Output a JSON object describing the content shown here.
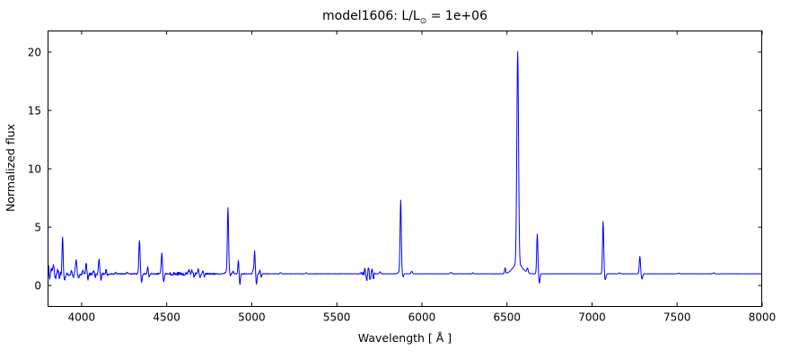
{
  "title": {
    "prefix": "model1606: L/L",
    "solar_symbol": "⊙",
    "suffix": " = 1e+06"
  },
  "chart_data": {
    "type": "line",
    "title": "model1606: L/L⊙ = 1e+06",
    "xlabel": "Wavelength [ Å ]",
    "ylabel": "Normalized flux",
    "xlim": [
      3800,
      8000
    ],
    "ylim": [
      -1.8,
      21.85
    ],
    "xticks": [
      4000,
      4500,
      5000,
      5500,
      6000,
      6500,
      7000,
      7500,
      8000
    ],
    "yticks": [
      0,
      5,
      10,
      15,
      20
    ],
    "grid": false,
    "legend": null,
    "line_color": "#0000ff",
    "background_color": "#ffffff",
    "axis_color": "#000000",
    "continuum_level": 1.0,
    "sample_step_angstrom": 1.8,
    "emission_lines": [
      {
        "wavelength": 3806,
        "amp": 0.6,
        "sigma": 2.5
      },
      {
        "wavelength": 3813,
        "amp": -0.45,
        "sigma": 2.5
      },
      {
        "wavelength": 3822,
        "amp": 0.45,
        "sigma": 3
      },
      {
        "wavelength": 3835,
        "amp": 0.85,
        "sigma": 3
      },
      {
        "wavelength": 3846,
        "amp": -0.5,
        "sigma": 3
      },
      {
        "wavelength": 3860,
        "amp": 0.4,
        "sigma": 3
      },
      {
        "wavelength": 3871,
        "amp": -0.35,
        "sigma": 2.5
      },
      {
        "wavelength": 3889,
        "amp": 3.2,
        "sigma": 3
      },
      {
        "wavelength": 3900,
        "amp": -0.5,
        "sigma": 3.5
      },
      {
        "wavelength": 3926,
        "amp": -0.2,
        "sigma": 3
      },
      {
        "wavelength": 3940,
        "amp": 0.25,
        "sigma": 3
      },
      {
        "wavelength": 3952,
        "amp": -0.3,
        "sigma": 2.5
      },
      {
        "wavelength": 3964,
        "amp": 0.5,
        "sigma": 2.5
      },
      {
        "wavelength": 3970,
        "amp": 1.1,
        "sigma": 3
      },
      {
        "wavelength": 3982,
        "amp": -0.45,
        "sigma": 3
      },
      {
        "wavelength": 4009,
        "amp": 0.3,
        "sigma": 3
      },
      {
        "wavelength": 4026,
        "amp": 0.95,
        "sigma": 3
      },
      {
        "wavelength": 4037,
        "amp": -0.45,
        "sigma": 3
      },
      {
        "wavelength": 4070,
        "amp": 0.3,
        "sigma": 3
      },
      {
        "wavelength": 4081,
        "amp": -0.25,
        "sigma": 2.5
      },
      {
        "wavelength": 4102,
        "amp": 1.3,
        "sigma": 3.5
      },
      {
        "wavelength": 4114,
        "amp": -0.5,
        "sigma": 3.5
      },
      {
        "wavelength": 4144,
        "amp": 0.35,
        "sigma": 3
      },
      {
        "wavelength": 4154,
        "amp": -0.2,
        "sigma": 3
      },
      {
        "wavelength": 4200,
        "amp": 0.12,
        "sigma": 3
      },
      {
        "wavelength": 4267,
        "amp": 0.15,
        "sigma": 3
      },
      {
        "wavelength": 4340,
        "amp": 2.9,
        "sigma": 3.5
      },
      {
        "wavelength": 4352,
        "amp": -0.7,
        "sigma": 3.5
      },
      {
        "wavelength": 4388,
        "amp": 0.6,
        "sigma": 3
      },
      {
        "wavelength": 4398,
        "amp": -0.3,
        "sigma": 3
      },
      {
        "wavelength": 4471,
        "amp": 1.75,
        "sigma": 3.5
      },
      {
        "wavelength": 4482,
        "amp": -0.65,
        "sigma": 3.5
      },
      {
        "wavelength": 4630,
        "amp": 0.3,
        "sigma": 4
      },
      {
        "wavelength": 4650,
        "amp": 0.3,
        "sigma": 3
      },
      {
        "wavelength": 4662,
        "amp": -0.25,
        "sigma": 3
      },
      {
        "wavelength": 4686,
        "amp": 0.45,
        "sigma": 3
      },
      {
        "wavelength": 4696,
        "amp": -0.3,
        "sigma": 3
      },
      {
        "wavelength": 4713,
        "amp": 0.3,
        "sigma": 2.5
      },
      {
        "wavelength": 4722,
        "amp": -0.25,
        "sigma": 2.5
      },
      {
        "wavelength": 4861,
        "amp": 5.4,
        "sigma": 3.5
      },
      {
        "wavelength": 4861,
        "amp": 0.25,
        "sigma": 12
      },
      {
        "wavelength": 4875,
        "amp": -0.3,
        "sigma": 3
      },
      {
        "wavelength": 4890,
        "amp": 0.2,
        "sigma": 3
      },
      {
        "wavelength": 4922,
        "amp": 1.15,
        "sigma": 3
      },
      {
        "wavelength": 4931,
        "amp": -0.95,
        "sigma": 3
      },
      {
        "wavelength": 5007,
        "amp": 0.35,
        "sigma": 3
      },
      {
        "wavelength": 5016,
        "amp": 1.95,
        "sigma": 3
      },
      {
        "wavelength": 5027,
        "amp": -0.9,
        "sigma": 3
      },
      {
        "wavelength": 5048,
        "amp": 0.3,
        "sigma": 2.5
      },
      {
        "wavelength": 5056,
        "amp": -0.3,
        "sigma": 2.5
      },
      {
        "wavelength": 5170,
        "amp": 0.1,
        "sigma": 4
      },
      {
        "wavelength": 5320,
        "amp": 0.08,
        "sigma": 4
      },
      {
        "wavelength": 5665,
        "amp": 0.45,
        "sigma": 3
      },
      {
        "wavelength": 5675,
        "amp": -0.6,
        "sigma": 3
      },
      {
        "wavelength": 5686,
        "amp": 0.5,
        "sigma": 3
      },
      {
        "wavelength": 5696,
        "amp": -0.5,
        "sigma": 3
      },
      {
        "wavelength": 5706,
        "amp": 0.35,
        "sigma": 3
      },
      {
        "wavelength": 5715,
        "amp": -0.35,
        "sigma": 3
      },
      {
        "wavelength": 5755,
        "amp": 0.18,
        "sigma": 4
      },
      {
        "wavelength": 5876,
        "amp": 6.1,
        "sigma": 3.5
      },
      {
        "wavelength": 5876,
        "amp": 0.2,
        "sigma": 12
      },
      {
        "wavelength": 5890,
        "amp": -0.35,
        "sigma": 4
      },
      {
        "wavelength": 5940,
        "amp": 0.22,
        "sigma": 4
      },
      {
        "wavelength": 6170,
        "amp": 0.12,
        "sigma": 5
      },
      {
        "wavelength": 6300,
        "amp": 0.1,
        "sigma": 3
      },
      {
        "wavelength": 6490,
        "amp": 0.5,
        "sigma": 3
      },
      {
        "wavelength": 6563,
        "amp": 18.2,
        "sigma": 5
      },
      {
        "wavelength": 6563,
        "amp": 0.85,
        "sigma": 28
      },
      {
        "wavelength": 6620,
        "amp": 0.4,
        "sigma": 4
      },
      {
        "wavelength": 6678,
        "amp": 3.4,
        "sigma": 3.5
      },
      {
        "wavelength": 6691,
        "amp": -0.8,
        "sigma": 3.5
      },
      {
        "wavelength": 7065,
        "amp": 4.5,
        "sigma": 3.5
      },
      {
        "wavelength": 7078,
        "amp": -0.5,
        "sigma": 4
      },
      {
        "wavelength": 7160,
        "amp": 0.08,
        "sigma": 4
      },
      {
        "wavelength": 7281,
        "amp": 1.5,
        "sigma": 3.5
      },
      {
        "wavelength": 7293,
        "amp": -0.45,
        "sigma": 4
      },
      {
        "wavelength": 7510,
        "amp": 0.06,
        "sigma": 4
      },
      {
        "wavelength": 7715,
        "amp": 0.08,
        "sigma": 4
      }
    ],
    "noise_regions": [
      {
        "from": 3800,
        "to": 3880,
        "amp": 0.2
      },
      {
        "from": 3880,
        "to": 4160,
        "amp": 0.12
      },
      {
        "from": 4160,
        "to": 4320,
        "amp": 0.04
      },
      {
        "from": 4320,
        "to": 4520,
        "amp": 0.06
      },
      {
        "from": 4520,
        "to": 4670,
        "amp": 0.13
      },
      {
        "from": 4670,
        "to": 4790,
        "amp": 0.06
      },
      {
        "from": 4790,
        "to": 5100,
        "amp": 0.03
      },
      {
        "from": 5100,
        "to": 5640,
        "amp": 0.015
      },
      {
        "from": 5640,
        "to": 5725,
        "amp": 0.15
      },
      {
        "from": 5725,
        "to": 6540,
        "amp": 0.012
      },
      {
        "from": 6540,
        "to": 8000,
        "amp": 0.009
      }
    ]
  }
}
